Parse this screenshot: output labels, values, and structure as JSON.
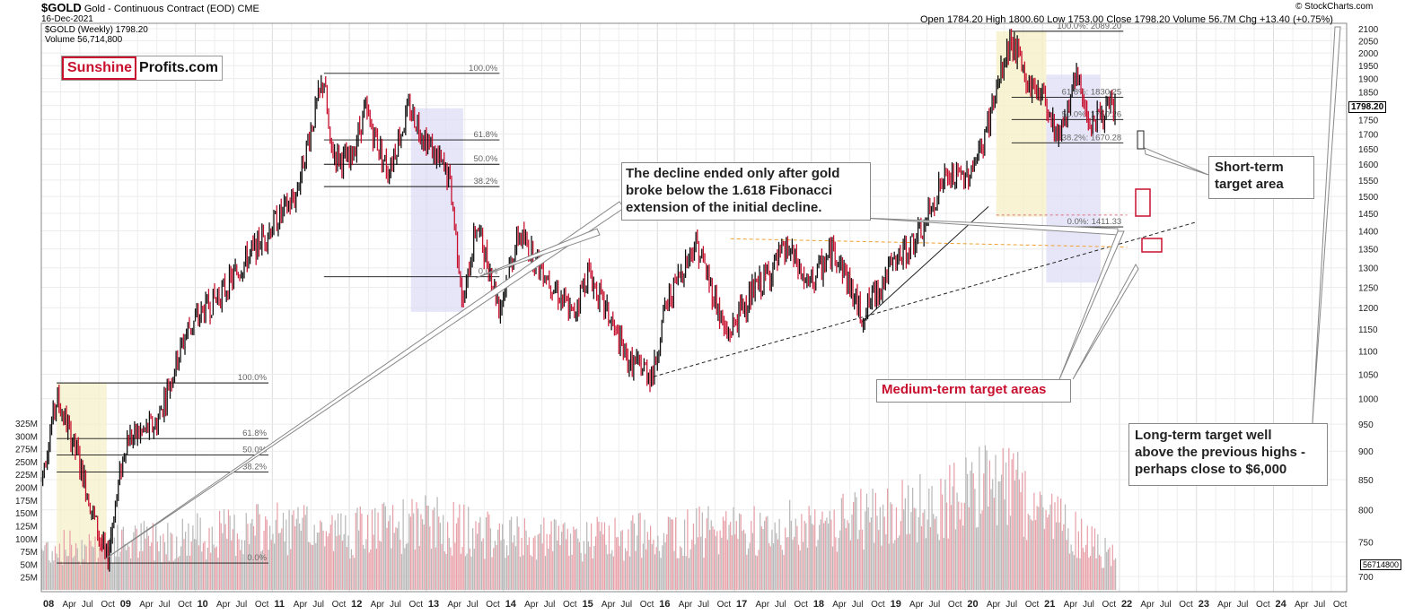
{
  "header": {
    "symbol": "$GOLD",
    "title": "Gold - Continuous Contract (EOD)",
    "exchange": "CME",
    "date": "16-Dec-2021",
    "series_label": "$GOLD (Weekly) 1798.20",
    "volume_label": "Volume 56,714,800",
    "ohlc": "Open 1784.20  High 1800.60  Low 1753.00  Close 1798.20  Volume 56.7M  Chg +13.40 (+0.75%)",
    "credit": "© StockCharts.com"
  },
  "logo": {
    "part1": "Sunshine",
    "part2": "Profits.com"
  },
  "annotations": {
    "decline": "The decline ended only after gold broke below the 1.618 Fibonacci extension of the initial decline.",
    "decline_lines": [
      "The decline ended only after gold",
      "broke below the 1.618 Fibonacci",
      "extension of the initial decline."
    ],
    "short_term": [
      "Short-term",
      "target area"
    ],
    "medium_term": "Medium-term target areas",
    "long_term": [
      "Long-term target well",
      "above the previous highs -",
      "perhaps close to $6,000"
    ]
  },
  "price_badge": "1798.20",
  "volume_badge": "56714800",
  "fib_labels": [
    {
      "label": "100.0%",
      "price": 1920
    },
    {
      "label": "61.8%",
      "price": 1680
    },
    {
      "label": "50.0%",
      "price": 1600
    },
    {
      "label": "38.2%",
      "price": 1530
    },
    {
      "label": "0.0%",
      "price": 1277
    },
    {
      "label": "100.0%",
      "price": 1032
    },
    {
      "label": "61.8%",
      "price": 923
    },
    {
      "label": "50.0%",
      "price": 893
    },
    {
      "label": "38.2%",
      "price": 863
    },
    {
      "label": "0.0%",
      "price": 719
    },
    {
      "label": "100.0%: 2089.20",
      "price": 2089.2
    },
    {
      "label": "61.8%: 1830.25",
      "price": 1830.25
    },
    {
      "label": "50.0%: 1750.26",
      "price": 1750.26
    },
    {
      "label": "38.2%: 1670.28",
      "price": 1670.28
    },
    {
      "label": "0.0%: 1411.33",
      "price": 1411.33
    }
  ],
  "chart_data": {
    "type": "line",
    "title": "Gold - Continuous Contract (EOD)",
    "price_scale": "log",
    "x_ticks": [
      "08",
      "Apr",
      "Jul",
      "Oct",
      "09",
      "Apr",
      "Jul",
      "Oct",
      "10",
      "Apr",
      "Jul",
      "Oct",
      "11",
      "Apr",
      "Jul",
      "Oct",
      "12",
      "Apr",
      "Jul",
      "Oct",
      "13",
      "Apr",
      "Jul",
      "Oct",
      "14",
      "Apr",
      "Jul",
      "Oct",
      "15",
      "Apr",
      "Jul",
      "Oct",
      "16",
      "Apr",
      "Jul",
      "Oct",
      "17",
      "Apr",
      "Jul",
      "Oct",
      "18",
      "Apr",
      "Jul",
      "Oct",
      "19",
      "Apr",
      "Jul",
      "Oct",
      "20",
      "Apr",
      "Jul",
      "Oct",
      "21",
      "Apr",
      "Jul",
      "Oct",
      "22",
      "Apr",
      "Jul",
      "Oct",
      "23",
      "Apr",
      "Jul",
      "Oct",
      "24",
      "Apr",
      "Jul",
      "Oct"
    ],
    "y_ticks_price": [
      2100,
      2050,
      2000,
      1950,
      1900,
      1850,
      1800,
      1750,
      1700,
      1650,
      1600,
      1550,
      1500,
      1450,
      1400,
      1350,
      1300,
      1250,
      1200,
      1150,
      1100,
      1050,
      1000,
      950,
      900,
      850,
      800,
      750,
      700
    ],
    "y_ticks_volume": [
      "325M",
      "300M",
      "275M",
      "250M",
      "225M",
      "200M",
      "175M",
      "150M",
      "125M",
      "100M",
      "75M",
      "50M",
      "25M"
    ],
    "series": [
      {
        "name": "$GOLD (Weekly)",
        "x": [
          2008.0,
          2008.2,
          2008.45,
          2008.7,
          2008.85,
          2009.1,
          2009.5,
          2009.9,
          2010.4,
          2010.95,
          2011.3,
          2011.67,
          2011.75,
          2012.0,
          2012.2,
          2012.5,
          2012.78,
          2013.0,
          2013.3,
          2013.48,
          2013.65,
          2013.95,
          2014.2,
          2014.5,
          2014.9,
          2015.1,
          2015.6,
          2015.95,
          2016.1,
          2016.5,
          2016.9,
          2017.1,
          2017.7,
          2017.95,
          2018.3,
          2018.65,
          2019.0,
          2019.45,
          2019.7,
          2020.0,
          2020.2,
          2020.6,
          2020.8,
          2021.0,
          2021.2,
          2021.45,
          2021.6,
          2021.72,
          2021.96
        ],
        "y": [
          850,
          1000,
          900,
          780,
          720,
          920,
          950,
          1150,
          1250,
          1400,
          1500,
          1900,
          1650,
          1600,
          1780,
          1580,
          1790,
          1680,
          1550,
          1200,
          1420,
          1200,
          1390,
          1300,
          1180,
          1290,
          1080,
          1050,
          1200,
          1370,
          1130,
          1200,
          1350,
          1250,
          1350,
          1180,
          1290,
          1400,
          1550,
          1560,
          1640,
          2060,
          1880,
          1850,
          1690,
          1900,
          1750,
          1760,
          1798.2
        ]
      }
    ],
    "volume": {
      "name": "Volume",
      "unit": "M",
      "x": [
        2008.0,
        2009.0,
        2010.0,
        2011.0,
        2012.0,
        2013.0,
        2014.0,
        2015.0,
        2016.0,
        2017.0,
        2018.0,
        2019.0,
        2020.0,
        2020.3,
        2021.0,
        2021.96
      ],
      "y": [
        80,
        90,
        105,
        120,
        110,
        130,
        100,
        95,
        110,
        115,
        125,
        145,
        190,
        230,
        150,
        56.7
      ]
    },
    "markers": [
      "Short-term target area",
      "Medium-term target areas"
    ]
  }
}
